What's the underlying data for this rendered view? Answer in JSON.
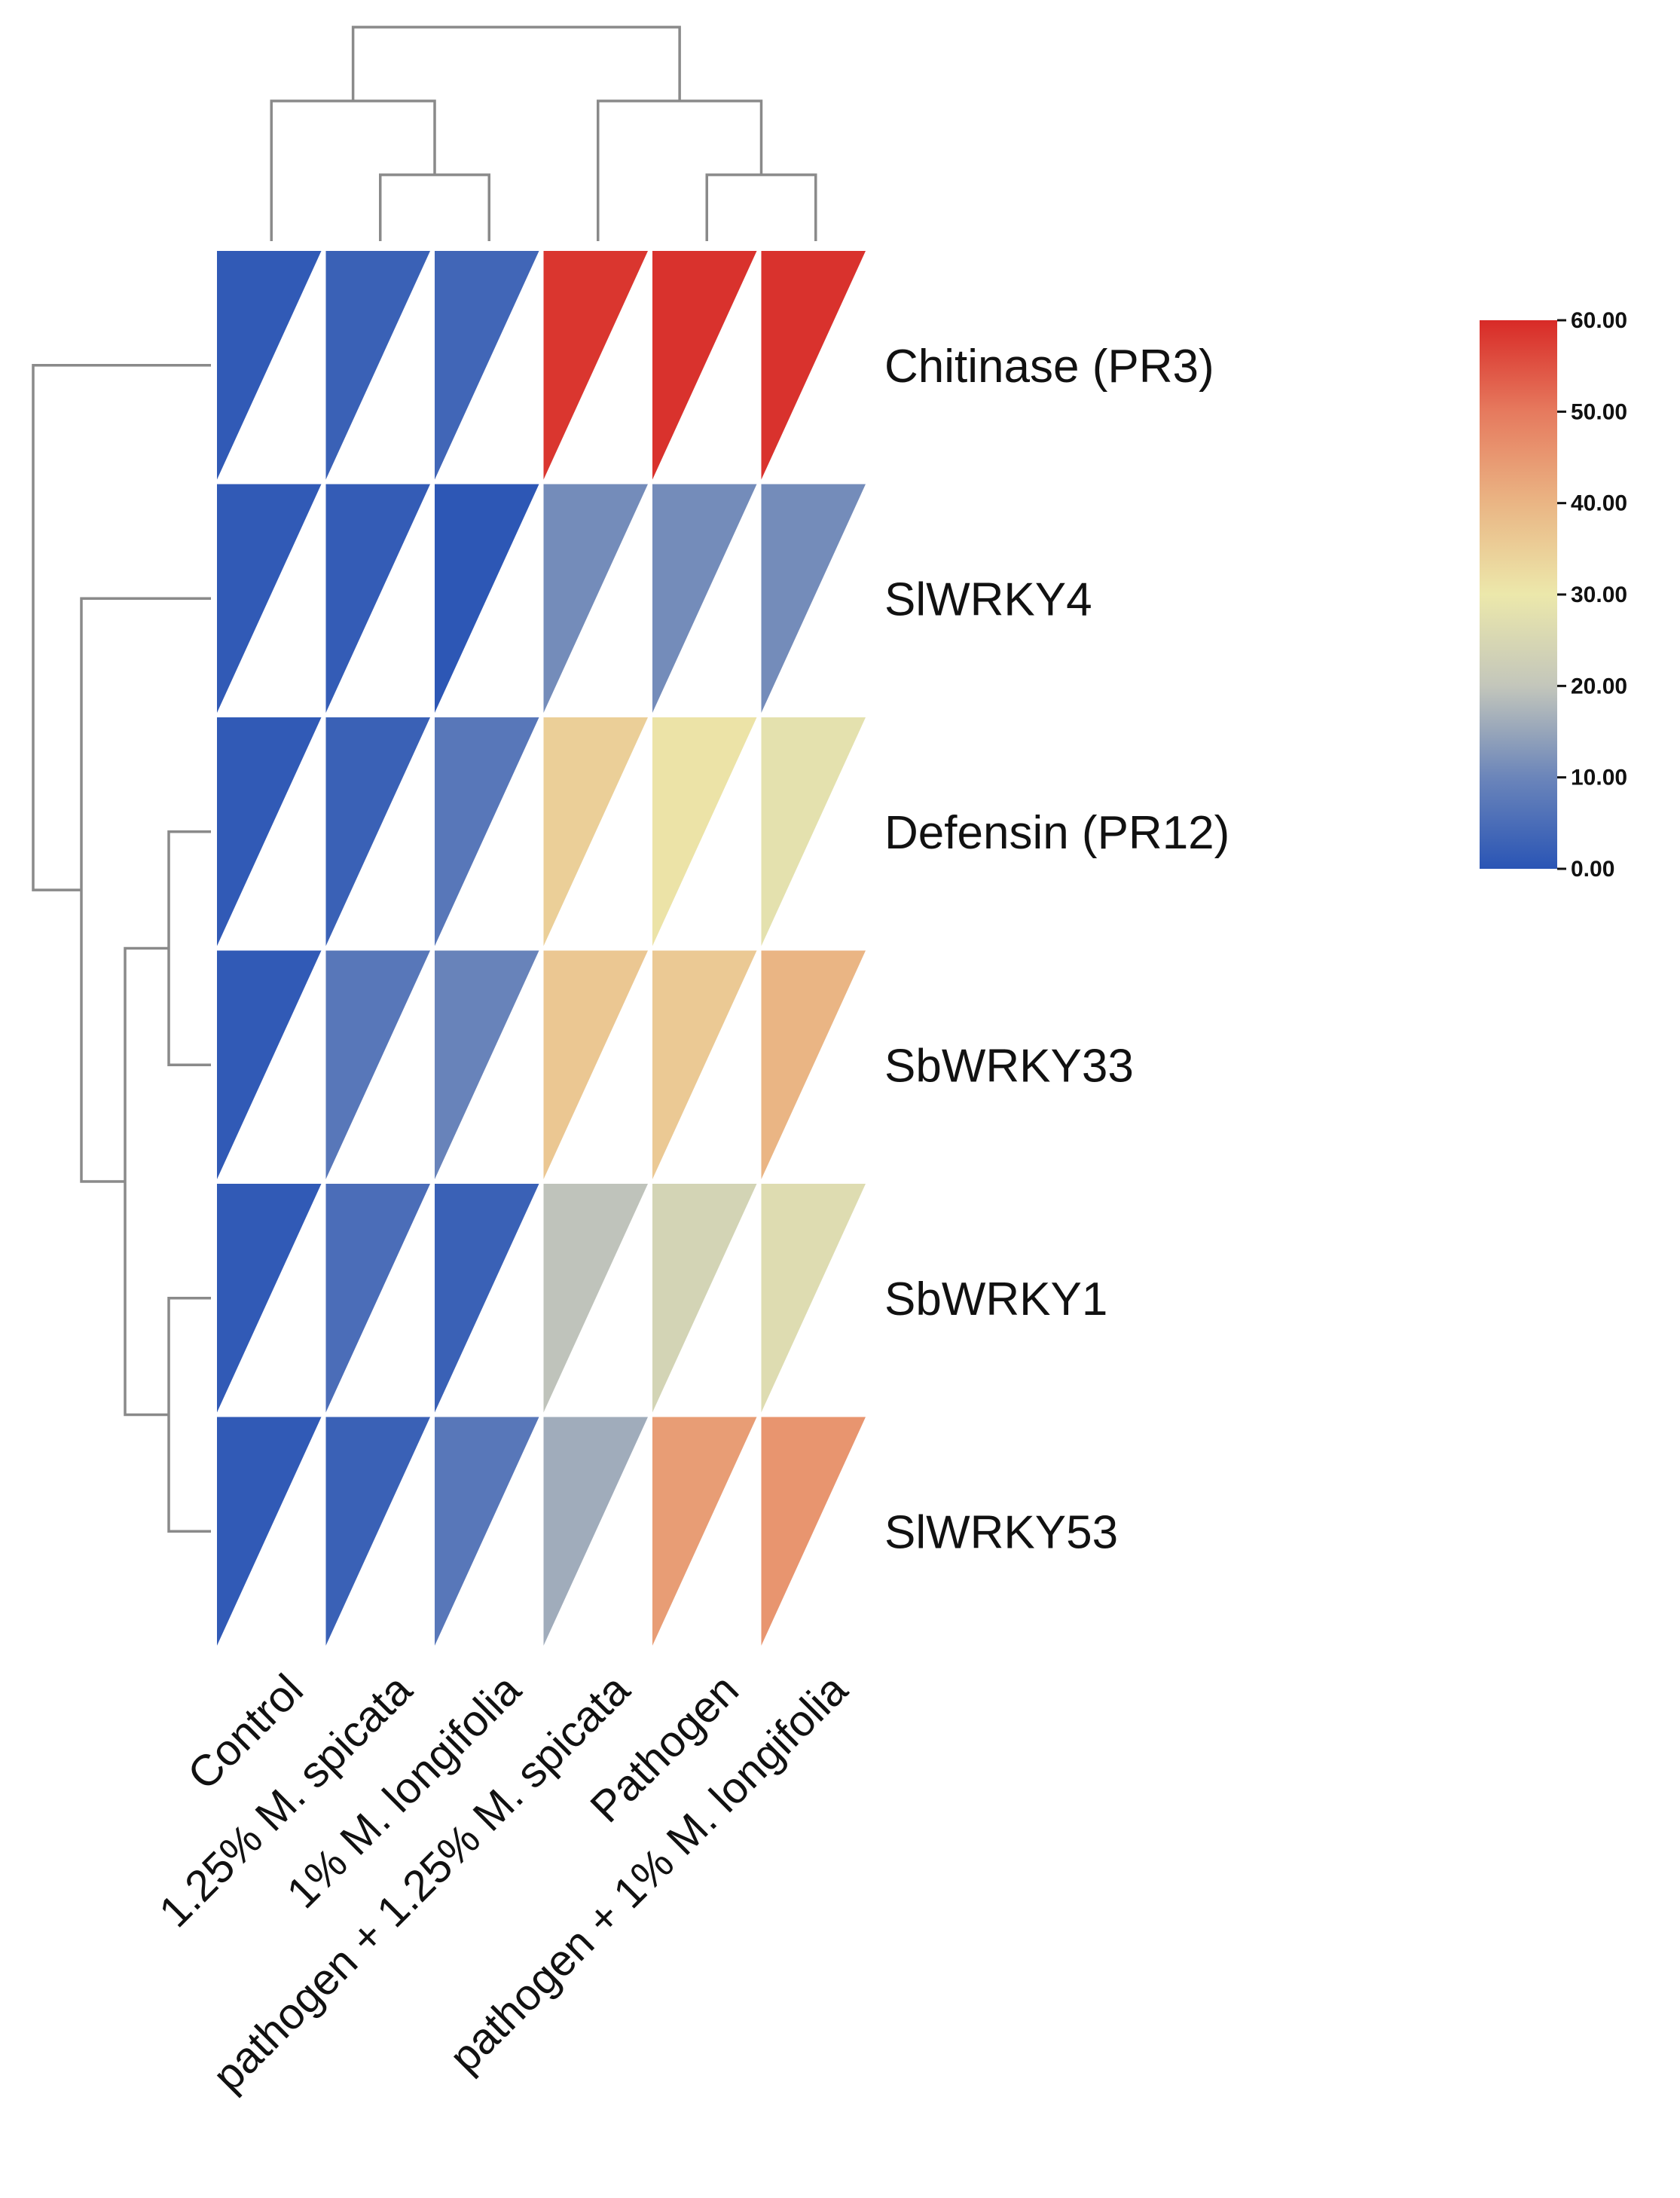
{
  "chart_data": {
    "type": "heatmap",
    "title": "",
    "xlabel": "",
    "ylabel": "",
    "columns": [
      "Control",
      "1.25% M. spicata",
      "1% M. longifolia",
      "pathogen + 1.25% M. spicata",
      "Pathogen",
      "pathogen + 1% M. longifolia"
    ],
    "rows": [
      {
        "name": "Chitinase (PR3)",
        "values": [
          1.0,
          2.5,
          3.5,
          58.5,
          59.0,
          59.0
        ]
      },
      {
        "name": "SlWRKY4",
        "values": [
          1.0,
          1.5,
          0.5,
          11.0,
          11.0,
          11.0
        ]
      },
      {
        "name": "Defensin (PR12)",
        "values": [
          1.0,
          2.5,
          7.0,
          35.0,
          31.0,
          28.0
        ]
      },
      {
        "name": "SbWRKY33",
        "values": [
          1.0,
          7.0,
          9.5,
          36.5,
          36.0,
          40.0
        ]
      },
      {
        "name": "SbWRKY1",
        "values": [
          1.0,
          5.0,
          2.5,
          19.5,
          24.0,
          26.5
        ]
      },
      {
        "name": "SlWRKY53",
        "values": [
          1.0,
          2.5,
          7.0,
          16.0,
          44.0,
          45.5
        ]
      }
    ],
    "colorbar": {
      "min": 0,
      "max": 60,
      "ticks": [
        "60.00",
        "50.00",
        "40.00",
        "30.00",
        "20.00",
        "10.00",
        "0.00"
      ],
      "colors": [
        "#2a55b5",
        "#6b85ba",
        "#c3c6bb",
        "#ece8ab",
        "#eab584",
        "#e67a5e",
        "#d82a27"
      ]
    },
    "cell_shape": "triangle",
    "dendrograms": {
      "rows": true,
      "columns": true
    }
  }
}
